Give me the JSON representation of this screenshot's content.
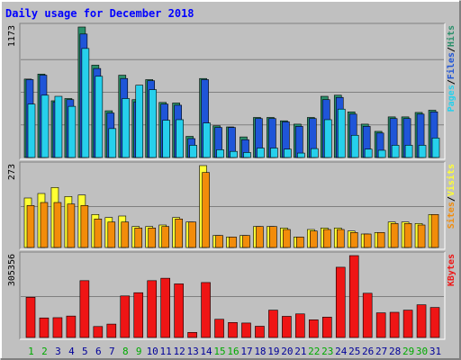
{
  "chart_data": {
    "type": "bar",
    "title": "Daily usage for December 2018",
    "categories": [
      "1",
      "2",
      "3",
      "4",
      "5",
      "6",
      "7",
      "8",
      "9",
      "10",
      "11",
      "12",
      "13",
      "14",
      "15",
      "16",
      "17",
      "18",
      "19",
      "20",
      "21",
      "22",
      "23",
      "24",
      "25",
      "26",
      "27",
      "28",
      "29",
      "30",
      "31"
    ],
    "weekend_days": [
      "1",
      "2",
      "8",
      "9",
      "15",
      "16",
      "22",
      "23",
      "29",
      "30"
    ],
    "panels": [
      {
        "id": "hits_files_pages",
        "max_label": "1173",
        "ymax": 1173,
        "axis_labels": [
          "Pages",
          "/",
          "Files",
          "/",
          "Hits"
        ],
        "series": [
          {
            "name": "Hits",
            "color": "#2a8f6a",
            "values": [
              705,
              750,
              510,
              530,
              1173,
              830,
              420,
              740,
              520,
              700,
              495,
              490,
              190,
              710,
              285,
              275,
              185,
              360,
              360,
              330,
              300,
              360,
              550,
              560,
              410,
              300,
              235,
              365,
              365,
              405,
              425
            ]
          },
          {
            "name": "Files",
            "color": "#1f55d8",
            "values": [
              700,
              740,
              500,
              520,
              1110,
              800,
              400,
              710,
              500,
              690,
              480,
              470,
              170,
              700,
              270,
              270,
              160,
              350,
              350,
              320,
              280,
              350,
              520,
              540,
              390,
              280,
              220,
              350,
              350,
              390,
              410
            ]
          },
          {
            "name": "Pages",
            "color": "#26d0ec",
            "values": [
              480,
              560,
              550,
              460,
              980,
              730,
              260,
              530,
              650,
              610,
              335,
              340,
              110,
              310,
              70,
              55,
              45,
              85,
              85,
              75,
              40,
              80,
              340,
              435,
              200,
              75,
              65,
              110,
              110,
              110,
              175
            ]
          }
        ]
      },
      {
        "id": "visits_sites",
        "max_label": "273",
        "ymax": 273,
        "axis_labels": [
          "Sites",
          "/",
          "Visits"
        ],
        "series": [
          {
            "name": "Visits",
            "color": "#ffff33",
            "values": [
              165,
              180,
              200,
              170,
              175,
              110,
              100,
              105,
              70,
              70,
              75,
              100,
              85,
              273,
              40,
              35,
              40,
              70,
              70,
              65,
              35,
              60,
              65,
              65,
              55,
              45,
              50,
              85,
              85,
              80,
              110
            ]
          },
          {
            "name": "Sites",
            "color": "#f28c0a",
            "values": [
              140,
              150,
              150,
              145,
              140,
              95,
              85,
              85,
              65,
              65,
              70,
              95,
              85,
              250,
              40,
              35,
              40,
              70,
              70,
              60,
              35,
              55,
              60,
              60,
              50,
              45,
              50,
              80,
              80,
              75,
              110
            ]
          }
        ]
      },
      {
        "id": "kbytes",
        "max_label": "305356",
        "ymax": 305356,
        "axis_labels": [
          "KBytes"
        ],
        "series": [
          {
            "name": "KBytes",
            "color": "#ef1515",
            "values": [
              150000,
              73000,
              74000,
              80000,
              212000,
              41000,
              50000,
              155000,
              167000,
              212000,
              221000,
              200000,
              19000,
              205000,
              68000,
              56000,
              54000,
              42000,
              102000,
              79000,
              88000,
              66000,
              76000,
              262000,
              305356,
              165000,
              92000,
              94000,
              102000,
              122000,
              112000
            ]
          }
        ]
      }
    ],
    "colors": {
      "title": "#0000ff",
      "max_label": "#000000",
      "weekday_label": "#000099",
      "weekend_label": "#00aa00",
      "panel_bg": "#c0c0c0",
      "frame_light": "#ffffff",
      "frame_dark": "#808080",
      "gridline": "#808080"
    }
  }
}
